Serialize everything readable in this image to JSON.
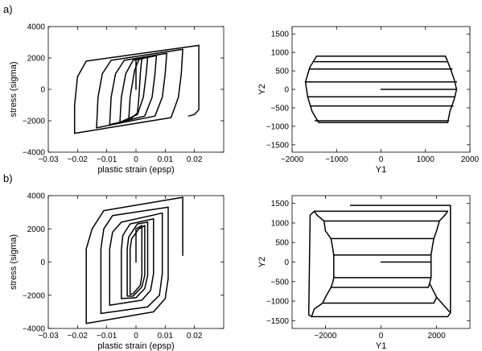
{
  "panel_labels": [
    "a)",
    "b)"
  ],
  "chart_data": [
    {
      "type": "line",
      "panel": "a)",
      "title": "",
      "xlabel": "plastic strain (epsp)",
      "ylabel": "stress (sigma)",
      "xlim": [
        -0.03,
        0.03
      ],
      "ylim": [
        -4000,
        4000
      ],
      "xticks": [
        -0.03,
        -0.02,
        -0.01,
        0,
        0.01,
        0.02
      ],
      "yticks": [
        -4000,
        -2000,
        0,
        2000,
        4000
      ],
      "grid": false,
      "series": [
        {
          "points": [
            [
              0,
              0
            ],
            [
              0,
              1950
            ],
            [
              0.0012,
              1980
            ],
            [
              0.002,
              2020
            ]
          ]
        },
        {
          "points": [
            [
              0.002,
              2020
            ],
            [
              0.0015,
              1000
            ],
            [
              0.001,
              -500
            ],
            [
              0.0005,
              -1500
            ],
            [
              -0.0025,
              -2000
            ]
          ]
        },
        {
          "points": [
            [
              -0.0025,
              -2000
            ],
            [
              -0.002,
              -500
            ],
            [
              -0.0005,
              1200
            ],
            [
              0.001,
              1900
            ],
            [
              0.004,
              2050
            ]
          ]
        },
        {
          "points": [
            [
              0.004,
              2050
            ],
            [
              0.0035,
              1000
            ],
            [
              0.0025,
              -500
            ],
            [
              0.0005,
              -1600
            ],
            [
              -0.0055,
              -2100
            ]
          ]
        },
        {
          "points": [
            [
              -0.0055,
              -2100
            ],
            [
              -0.005,
              -500
            ],
            [
              -0.0035,
              1000
            ],
            [
              -0.001,
              1850
            ],
            [
              0.007,
              2150
            ]
          ]
        },
        {
          "points": [
            [
              0.007,
              2150
            ],
            [
              0.0065,
              1000
            ],
            [
              0.0055,
              -500
            ],
            [
              0.003,
              -1700
            ],
            [
              -0.009,
              -2250
            ]
          ]
        },
        {
          "points": [
            [
              -0.009,
              -2250
            ],
            [
              -0.0085,
              -500
            ],
            [
              -0.007,
              1000
            ],
            [
              -0.004,
              1850
            ],
            [
              0.0105,
              2300
            ]
          ]
        },
        {
          "points": [
            [
              0.0105,
              2300
            ],
            [
              0.01,
              1000
            ],
            [
              0.009,
              -500
            ],
            [
              0.0065,
              -1700
            ],
            [
              -0.0135,
              -2450
            ]
          ]
        },
        {
          "points": [
            [
              -0.0135,
              -2450
            ],
            [
              -0.013,
              -500
            ],
            [
              -0.0115,
              1000
            ],
            [
              -0.0085,
              1850
            ],
            [
              0.016,
              2550
            ]
          ]
        },
        {
          "points": [
            [
              0.016,
              2550
            ],
            [
              0.0155,
              1000
            ],
            [
              0.0145,
              -500
            ],
            [
              0.012,
              -1800
            ],
            [
              -0.021,
              -2800
            ]
          ]
        },
        {
          "points": [
            [
              -0.021,
              -2800
            ],
            [
              -0.021,
              -1000
            ],
            [
              -0.02,
              800
            ],
            [
              -0.017,
              1800
            ],
            [
              0.0215,
              2800
            ]
          ]
        },
        {
          "points": [
            [
              0.0215,
              2800
            ],
            [
              0.0215,
              -1300
            ],
            [
              0.02,
              -1600
            ],
            [
              0.018,
              -1700
            ]
          ]
        }
      ]
    },
    {
      "type": "line",
      "panel": "a)",
      "title": "",
      "xlabel": "Y1",
      "ylabel": "Y2",
      "xlim": [
        -2000,
        2000
      ],
      "ylim": [
        -1700,
        1700
      ],
      "xticks": [
        -2000,
        -1000,
        0,
        1000,
        2000
      ],
      "yticks": [
        -1500,
        -1000,
        -500,
        0,
        500,
        1000,
        1500
      ],
      "grid": false,
      "series": [
        {
          "points": [
            [
              0,
              0
            ],
            [
              1700,
              0
            ]
          ]
        },
        {
          "points": [
            [
              1700,
              0
            ],
            [
              1650,
              -250
            ],
            [
              1550,
              -600
            ],
            [
              1500,
              -900
            ],
            [
              -1400,
              -900
            ],
            [
              -1550,
              -600
            ],
            [
              -1650,
              -200
            ],
            [
              -1700,
              200
            ],
            [
              -1600,
              600
            ],
            [
              -1450,
              900
            ],
            [
              1450,
              900
            ],
            [
              1550,
              600
            ],
            [
              1650,
              250
            ],
            [
              1700,
              0
            ]
          ]
        },
        {
          "points": [
            [
              -1700,
              200
            ],
            [
              1700,
              200
            ]
          ]
        },
        {
          "points": [
            [
              -1650,
              -200
            ],
            [
              1650,
              -200
            ]
          ]
        },
        {
          "points": [
            [
              -1600,
              550
            ],
            [
              1600,
              550
            ]
          ]
        },
        {
          "points": [
            [
              -1580,
              -450
            ],
            [
              1620,
              -450
            ]
          ]
        },
        {
          "points": [
            [
              -1500,
              750
            ],
            [
              1500,
              750
            ]
          ]
        },
        {
          "points": [
            [
              -1480,
              -850
            ],
            [
              1520,
              -850
            ]
          ]
        }
      ]
    },
    {
      "type": "line",
      "panel": "b)",
      "title": "",
      "xlabel": "plastic strain (epsp)",
      "ylabel": "stress (sigma)",
      "xlim": [
        -0.03,
        0.03
      ],
      "ylim": [
        -4000,
        4000
      ],
      "xticks": [
        -0.03,
        -0.02,
        -0.01,
        0,
        0.01,
        0.02
      ],
      "yticks": [
        -4000,
        -2000,
        0,
        2000,
        4000
      ],
      "grid": false,
      "series": [
        {
          "points": [
            [
              0,
              0
            ],
            [
              0,
              2000
            ],
            [
              0.0015,
              2150
            ],
            [
              0.002,
              2200
            ]
          ]
        },
        {
          "points": [
            [
              0.002,
              2200
            ],
            [
              0.002,
              -800
            ],
            [
              0.0015,
              -1400
            ],
            [
              -0.001,
              -1900
            ],
            [
              -0.002,
              -1950
            ]
          ]
        },
        {
          "points": [
            [
              -0.002,
              -1950
            ],
            [
              -0.002,
              800
            ],
            [
              -0.0015,
              1400
            ],
            [
              0.001,
              2000
            ],
            [
              0.003,
              2200
            ]
          ]
        },
        {
          "points": [
            [
              0.003,
              2200
            ],
            [
              0.003,
              -800
            ],
            [
              0.002,
              -1500
            ],
            [
              -0.001,
              -2050
            ],
            [
              -0.003,
              -2050
            ]
          ]
        },
        {
          "points": [
            [
              -0.003,
              -2050
            ],
            [
              -0.003,
              800
            ],
            [
              -0.0025,
              1500
            ],
            [
              0.0005,
              2300
            ],
            [
              0.004,
              2400
            ]
          ]
        },
        {
          "points": [
            [
              0.004,
              2400
            ],
            [
              0.004,
              -800
            ],
            [
              0.003,
              -1600
            ],
            [
              0,
              -2150
            ],
            [
              -0.005,
              -2200
            ]
          ]
        },
        {
          "points": [
            [
              -0.005,
              -2200
            ],
            [
              -0.005,
              700
            ],
            [
              -0.0045,
              1600
            ],
            [
              -0.002,
              2300
            ],
            [
              0.006,
              2600
            ]
          ]
        },
        {
          "points": [
            [
              0.006,
              2600
            ],
            [
              0.006,
              -700
            ],
            [
              0.005,
              -1700
            ],
            [
              0.002,
              -2300
            ],
            [
              -0.009,
              -2600
            ]
          ]
        },
        {
          "points": [
            [
              -0.009,
              -2600
            ],
            [
              -0.009,
              800
            ],
            [
              -0.008,
              1800
            ],
            [
              -0.005,
              2400
            ],
            [
              0.009,
              2950
            ]
          ]
        },
        {
          "points": [
            [
              0.009,
              2950
            ],
            [
              0.009,
              -700
            ],
            [
              0.008,
              -2000
            ],
            [
              0.004,
              -2700
            ],
            [
              -0.012,
              -3100
            ]
          ]
        },
        {
          "points": [
            [
              -0.012,
              -3100
            ],
            [
              -0.012,
              800
            ],
            [
              -0.011,
              2000
            ],
            [
              -0.008,
              2800
            ],
            [
              0.011,
              3300
            ]
          ]
        },
        {
          "points": [
            [
              0.011,
              3300
            ],
            [
              0.011,
              -1000
            ],
            [
              0.01,
              -2200
            ],
            [
              0.006,
              -3000
            ],
            [
              -0.017,
              -3700
            ]
          ]
        },
        {
          "points": [
            [
              -0.017,
              -3700
            ],
            [
              -0.017,
              800
            ],
            [
              -0.015,
              2000
            ],
            [
              -0.011,
              3100
            ],
            [
              0.016,
              3900
            ]
          ]
        },
        {
          "points": [
            [
              0.016,
              3900
            ],
            [
              0.016,
              400
            ]
          ]
        }
      ]
    },
    {
      "type": "line",
      "panel": "b)",
      "title": "",
      "xlabel": "Y1",
      "ylabel": "Y2",
      "xlim": [
        -3200,
        3200
      ],
      "ylim": [
        -1700,
        1700
      ],
      "xticks": [
        -2000,
        0,
        2000
      ],
      "yticks": [
        -1500,
        -1000,
        -500,
        0,
        500,
        1000,
        1500
      ],
      "grid": false,
      "series": [
        {
          "points": [
            [
              0,
              0
            ],
            [
              1800,
              0
            ]
          ]
        },
        {
          "points": [
            [
              1800,
              0
            ],
            [
              1800,
              180
            ],
            [
              -1700,
              180
            ],
            [
              -1700,
              -400
            ],
            [
              1800,
              -400
            ],
            [
              1800,
              0
            ]
          ]
        },
        {
          "points": [
            [
              1800,
              180
            ],
            [
              1850,
              400
            ],
            [
              1900,
              600
            ],
            [
              -1800,
              600
            ],
            [
              -1750,
              400
            ],
            [
              -1700,
              180
            ]
          ]
        },
        {
          "points": [
            [
              -1700,
              -400
            ],
            [
              -1750,
              -550
            ],
            [
              -1800,
              -650
            ],
            [
              1700,
              -650
            ],
            [
              1750,
              -550
            ],
            [
              1800,
              -400
            ]
          ]
        },
        {
          "points": [
            [
              1900,
              600
            ],
            [
              2000,
              800
            ],
            [
              2100,
              1050
            ],
            [
              -2050,
              1050
            ],
            [
              -2000,
              800
            ],
            [
              -1800,
              600
            ]
          ]
        },
        {
          "points": [
            [
              -1800,
              -650
            ],
            [
              -2000,
              -900
            ],
            [
              -2100,
              -1050
            ],
            [
              1900,
              -1050
            ],
            [
              2000,
              -900
            ],
            [
              1750,
              -550
            ]
          ]
        },
        {
          "points": [
            [
              2100,
              1050
            ],
            [
              2300,
              1200
            ],
            [
              2400,
              1300
            ],
            [
              -2400,
              1300
            ],
            [
              -2300,
              1200
            ],
            [
              -2050,
              1050
            ]
          ]
        },
        {
          "points": [
            [
              -2100,
              -1050
            ],
            [
              -2400,
              -1200
            ],
            [
              -2500,
              -1400
            ],
            [
              2400,
              -1400
            ],
            [
              2500,
              -1300
            ],
            [
              2000,
              -900
            ]
          ]
        },
        {
          "points": [
            [
              -2400,
              1300
            ],
            [
              -2550,
              1200
            ],
            [
              -2600,
              -1350
            ],
            [
              -2500,
              -1400
            ]
          ]
        },
        {
          "points": [
            [
              -1100,
              1450
            ],
            [
              2500,
              1450
            ],
            [
              2500,
              -1300
            ]
          ]
        }
      ]
    }
  ]
}
